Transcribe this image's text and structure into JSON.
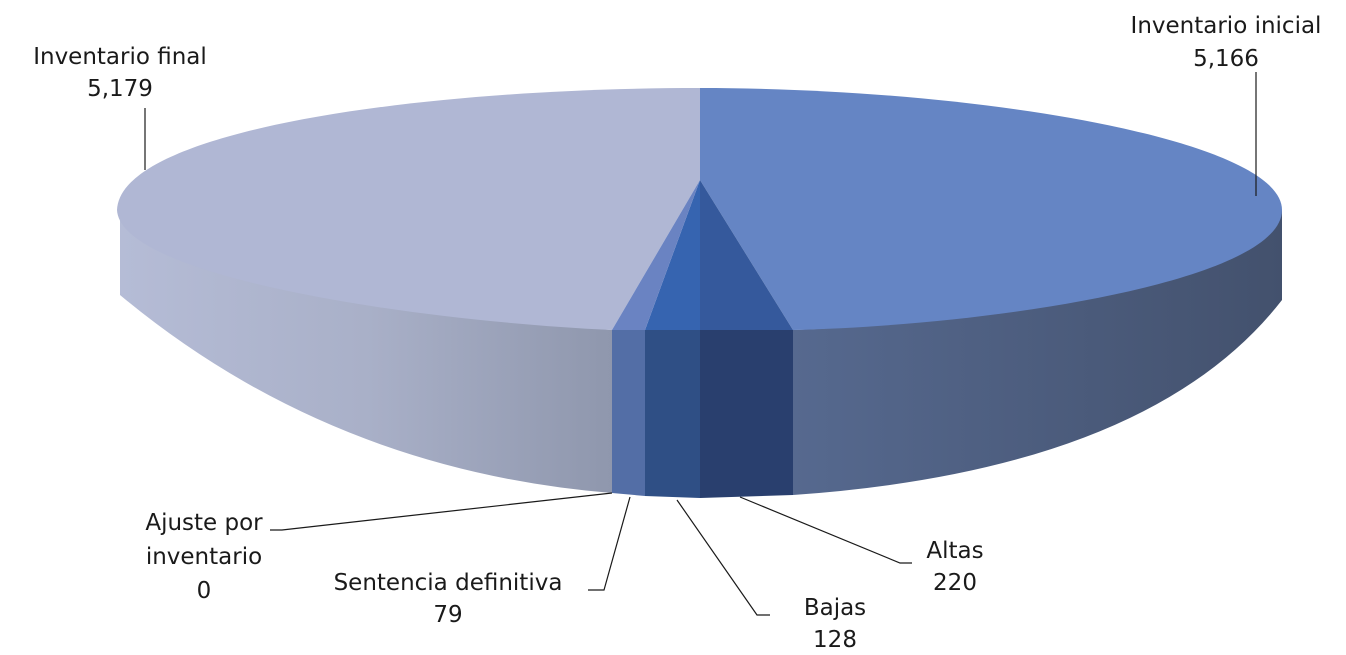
{
  "chart_data": {
    "type": "pie",
    "style": "3d-exploded-pie",
    "categories": [
      "Inventario inicial",
      "Altas",
      "Bajas",
      "Sentencia definitiva",
      "Ajuste por inventario",
      "Inventario final"
    ],
    "values": [
      5166,
      220,
      128,
      79,
      0,
      5179
    ],
    "display_values": [
      "5,166",
      "220",
      "128",
      "79",
      "0",
      "5,179"
    ],
    "colors": [
      "#6585c4",
      "#35599c",
      "#3664b0",
      "#6a83c2",
      "#6a83c2",
      "#b0b7d4"
    ],
    "legend": "none",
    "data_labels": true
  }
}
